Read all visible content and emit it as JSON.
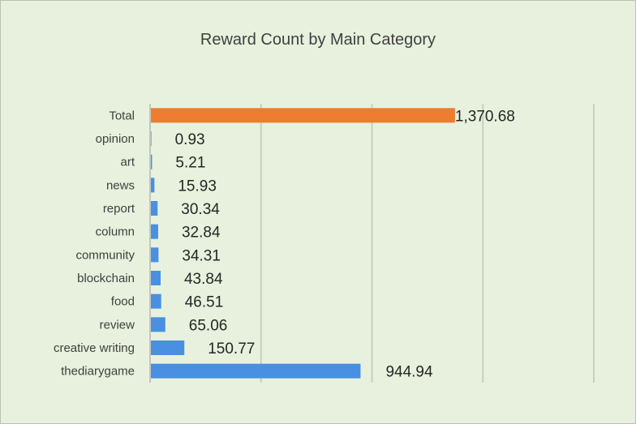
{
  "chart_data": {
    "type": "bar",
    "orientation": "horizontal",
    "title": "Reward Count by Main Category",
    "xlabel": "",
    "ylabel": "",
    "categories": [
      "Total",
      "opinion",
      "art",
      "news",
      "report",
      "column",
      "community",
      "blockchain",
      "food",
      "review",
      "creative writing",
      "thediarygame"
    ],
    "values": [
      1370.68,
      0.93,
      5.21,
      15.93,
      30.34,
      32.84,
      34.31,
      43.84,
      46.51,
      65.06,
      150.77,
      944.94
    ],
    "value_labels": [
      "1,370.68",
      "0.93",
      "5.21",
      "15.93",
      "30.34",
      "32.84",
      "34.31",
      "43.84",
      "46.51",
      "65.06",
      "150.77",
      "944.94"
    ],
    "xlim": [
      0,
      2000
    ],
    "grid": true,
    "legend": "none",
    "colors": {
      "total": "#ed7d31",
      "bars": "#4a90e2",
      "background": "#e7f1dd",
      "grid": "#c8d0c4"
    }
  }
}
